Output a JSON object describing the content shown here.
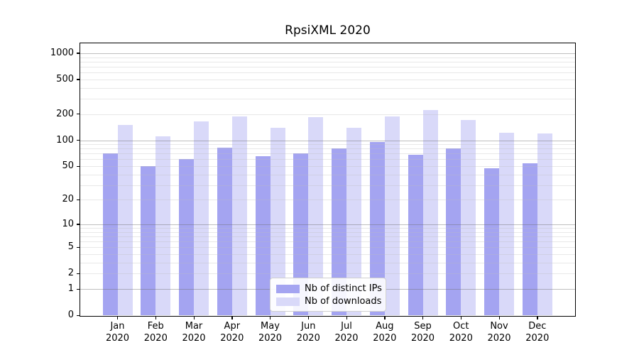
{
  "page": {
    "background": "#ffffff"
  },
  "chart_data": {
    "type": "bar",
    "title": "RpsiXML 2020",
    "categories": [
      "Jan",
      "Feb",
      "Mar",
      "Apr",
      "May",
      "Jun",
      "Jul",
      "Aug",
      "Sep",
      "Oct",
      "Nov",
      "Dec"
    ],
    "x_tick_second_line": "2020",
    "series": [
      {
        "name": "Nb of distinct IPs",
        "color": "#a4a4f1",
        "values": [
          71,
          50,
          61,
          82,
          65,
          71,
          80,
          95,
          68,
          80,
          47,
          54
        ]
      },
      {
        "name": "Nb of downloads",
        "color": "#d9d9f9",
        "values": [
          150,
          112,
          166,
          187,
          140,
          186,
          140,
          189,
          222,
          170,
          121,
          120
        ]
      }
    ],
    "xlabel": "",
    "ylabel": "",
    "y_ticks": [
      0,
      1,
      2,
      5,
      10,
      20,
      50,
      100,
      200,
      500,
      1000
    ],
    "y_scale": "log10(value+1)",
    "ylim": [
      0,
      1300
    ],
    "grid": {
      "on": true,
      "orientation": "horizontal",
      "major_color": "#b0b0b0",
      "minor_color": "#e9e9e9"
    },
    "legend": {
      "position": "inside-bottom-center"
    },
    "axis_color": "#000000"
  }
}
